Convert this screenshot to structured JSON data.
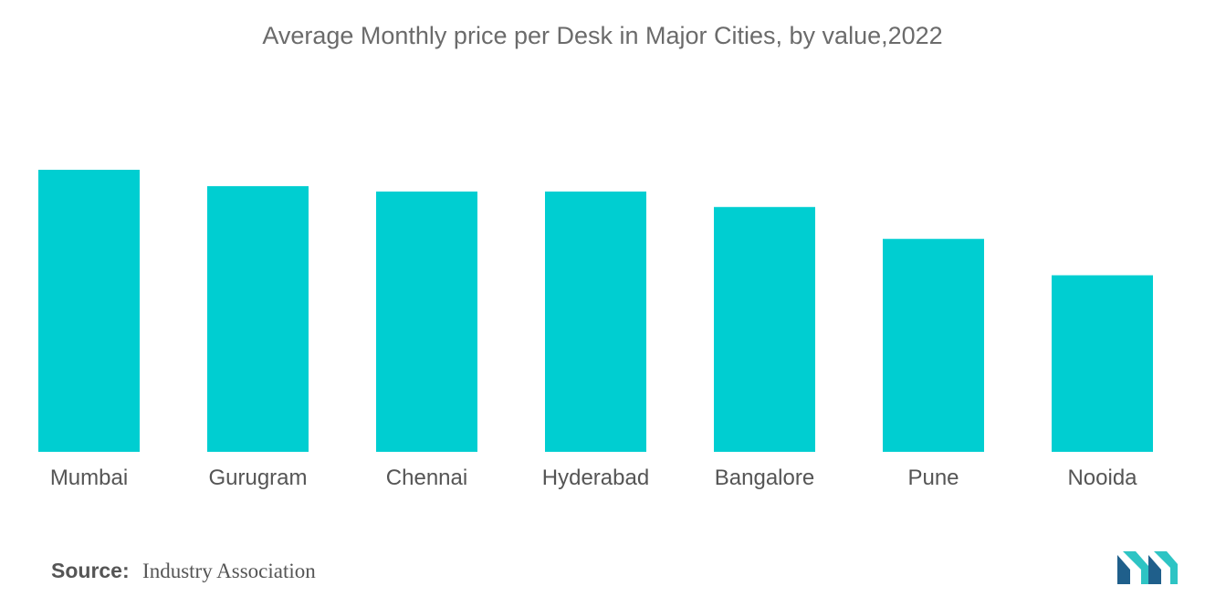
{
  "chart_data": {
    "type": "bar",
    "title": "Average Monthly price per Desk in Major Cities, by value,2022",
    "categories": [
      "Mumbai",
      "Gurugram",
      "Chennai",
      "Hyderabad",
      "Bangalore",
      "Pune",
      "Nooida"
    ],
    "values": [
      100,
      94.2,
      92.3,
      92.3,
      86.8,
      75.5,
      62.6
    ],
    "xlabel": "",
    "ylabel": "",
    "ylim": [
      0,
      100
    ],
    "grid": false,
    "legend": "none",
    "bar_color": "#00CED1"
  },
  "source": {
    "label": "Source:",
    "text": "Industry Association"
  },
  "logo": {
    "icon": "mordor-intelligence-logo-icon",
    "colors": [
      "#1f5f8b",
      "#2ec4c4"
    ]
  }
}
